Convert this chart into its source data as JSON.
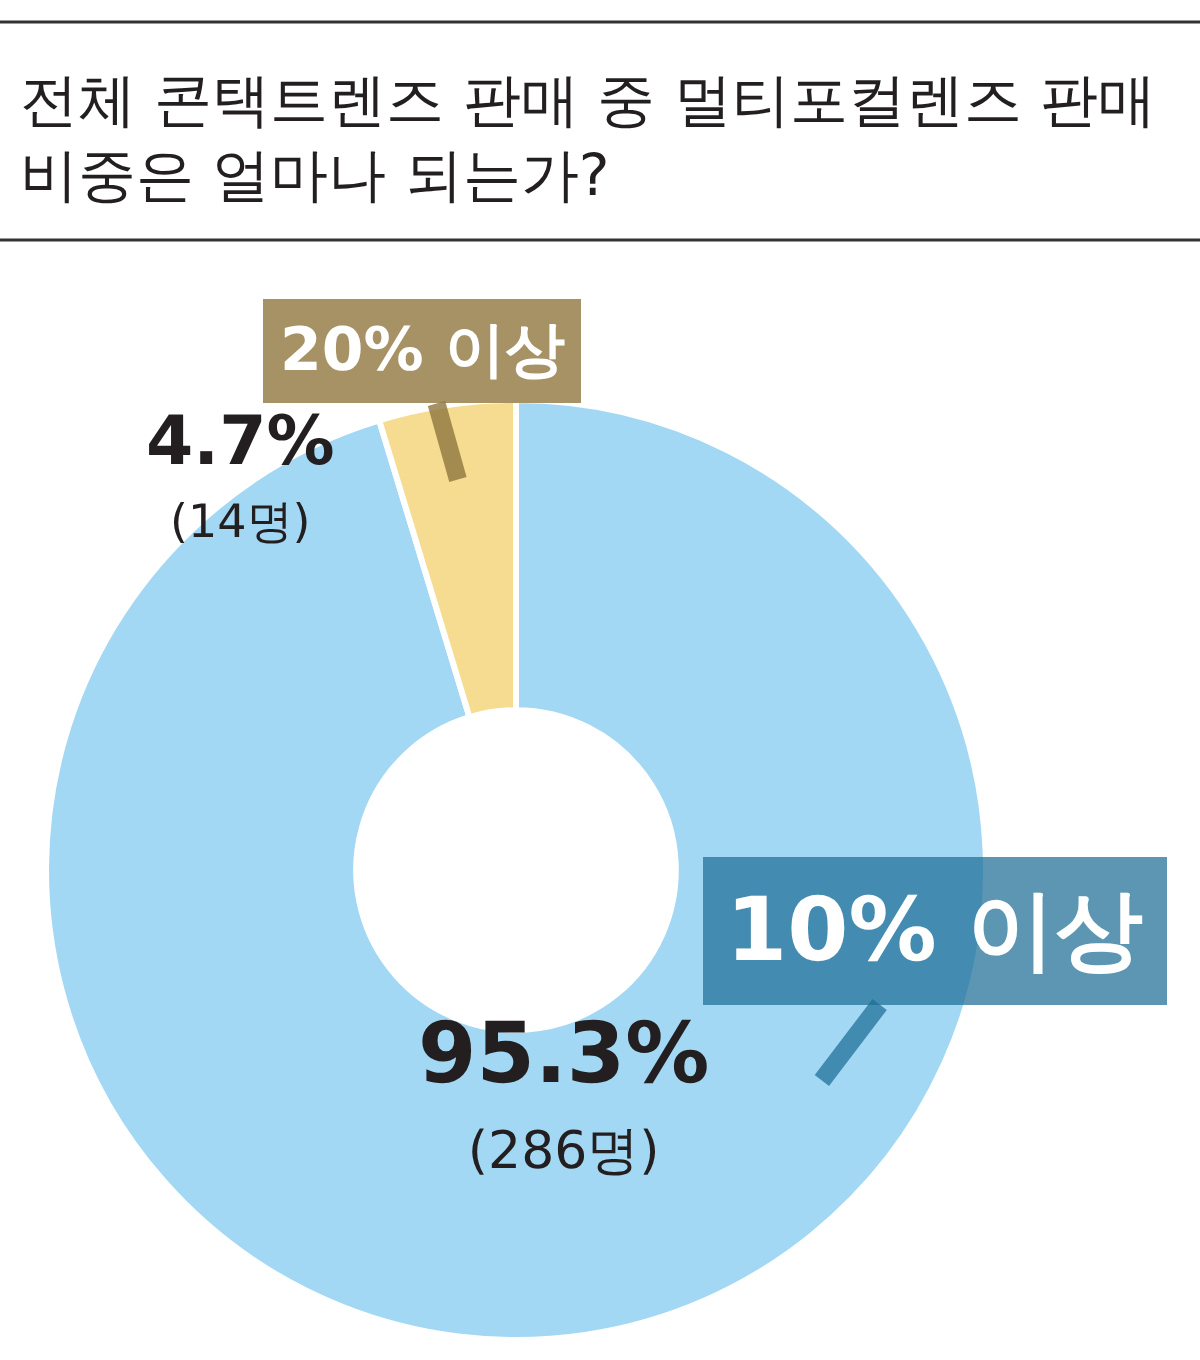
{
  "chart_data": {
    "type": "donut",
    "title": "전체 콘택트렌즈 판매 중 멀티포컬렌즈 판매 비중은 얼마나 되는가?",
    "categories": [
      "10% 이상",
      "20% 이상"
    ],
    "values": [
      95.3,
      4.7
    ],
    "colors": [
      "#a3d8f5",
      "#f6dc90"
    ],
    "value_labels": [
      "95.3%\n(286명)",
      "4.7%\n(14명)"
    ]
  }
}
